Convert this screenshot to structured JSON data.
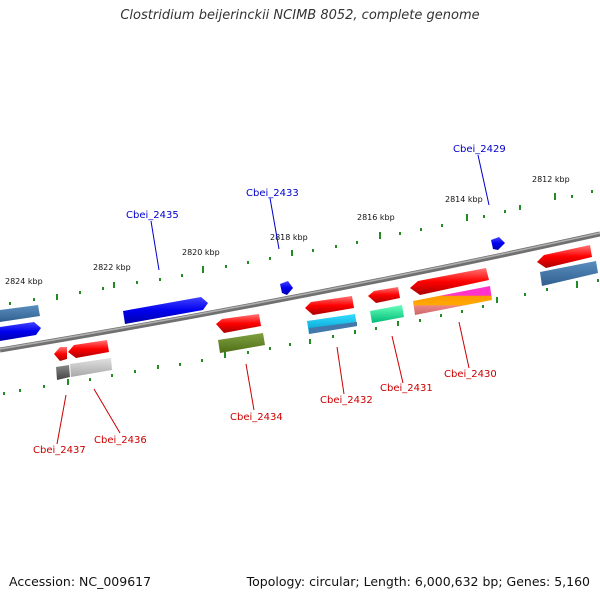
{
  "title": "Clostridium beijerinckii NCIMB 8052, complete genome",
  "footer": {
    "accession": "Accession: NC_009617",
    "topology": "Topology: circular; Length: 6,000,632 bp; Genes: 5,160"
  },
  "scale_labels": [
    "2824 kbp",
    "2822 kbp",
    "2820 kbp",
    "2818 kbp",
    "2816 kbp",
    "2814 kbp",
    "2812 kbp"
  ],
  "gene_labels": {
    "top": [
      "Cbei_2435",
      "Cbei_2433",
      "Cbei_2429"
    ],
    "bottom": [
      "Cbei_2437",
      "Cbei_2436",
      "Cbei_2434",
      "Cbei_2432",
      "Cbei_2431",
      "Cbei_2430"
    ]
  },
  "colors": {
    "forward_label": "#0000cc",
    "reverse_label": "#cc0000",
    "backbone": "#808080",
    "tick": "#228b22"
  }
}
